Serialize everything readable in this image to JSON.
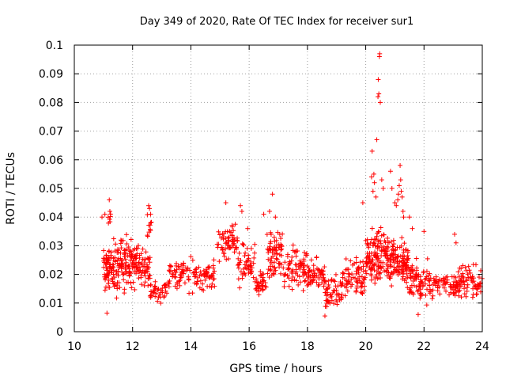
{
  "chart_data": {
    "type": "scatter",
    "title": "Day 349 of 2020, Rate Of TEC Index for receiver sur1",
    "xlabel": "GPS time / hours",
    "ylabel": "ROTI / TECUs",
    "xlim": [
      10,
      24
    ],
    "ylim": [
      0,
      0.1
    ],
    "xticks": [
      10,
      12,
      14,
      16,
      18,
      20,
      22,
      24
    ],
    "yticks": [
      0,
      0.01,
      0.02,
      0.03,
      0.04,
      0.05,
      0.06,
      0.07,
      0.08,
      0.09,
      0.1
    ],
    "xtick_labels": [
      "10",
      "12",
      "14",
      "16",
      "18",
      "20",
      "22",
      "24"
    ],
    "ytick_labels": [
      "0",
      "0.01",
      "0.02",
      "0.03",
      "0.04",
      "0.05",
      "0.06",
      "0.07",
      "0.08",
      "0.09",
      "0.1"
    ],
    "grid": true,
    "marker": "plus",
    "color": "#ff0000",
    "series": [
      {
        "values_described_by": "clusters",
        "clusters": [
          {
            "x_start": 11.0,
            "x_end": 11.5,
            "y_min": 0.01,
            "y_max": 0.035,
            "count": 90
          },
          {
            "x_start": 11.15,
            "x_end": 11.25,
            "y_min": 0.035,
            "y_max": 0.046,
            "count": 6
          },
          {
            "x_start": 11.5,
            "x_end": 12.2,
            "y_min": 0.012,
            "y_max": 0.035,
            "count": 110
          },
          {
            "x_start": 12.2,
            "x_end": 12.6,
            "y_min": 0.013,
            "y_max": 0.032,
            "count": 50
          },
          {
            "x_start": 12.5,
            "x_end": 12.65,
            "y_min": 0.03,
            "y_max": 0.044,
            "count": 10
          },
          {
            "x_start": 12.6,
            "x_end": 13.2,
            "y_min": 0.009,
            "y_max": 0.02,
            "count": 40
          },
          {
            "x_start": 13.2,
            "x_end": 14.0,
            "y_min": 0.012,
            "y_max": 0.028,
            "count": 60
          },
          {
            "x_start": 14.0,
            "x_end": 14.9,
            "y_min": 0.011,
            "y_max": 0.027,
            "count": 60
          },
          {
            "x_start": 14.9,
            "x_end": 15.6,
            "y_min": 0.022,
            "y_max": 0.04,
            "count": 60
          },
          {
            "x_start": 15.6,
            "x_end": 16.2,
            "y_min": 0.014,
            "y_max": 0.034,
            "count": 50
          },
          {
            "x_start": 16.2,
            "x_end": 16.6,
            "y_min": 0.011,
            "y_max": 0.022,
            "count": 35
          },
          {
            "x_start": 16.6,
            "x_end": 17.2,
            "y_min": 0.014,
            "y_max": 0.04,
            "count": 70
          },
          {
            "x_start": 17.2,
            "x_end": 18.0,
            "y_min": 0.011,
            "y_max": 0.033,
            "count": 80
          },
          {
            "x_start": 18.0,
            "x_end": 18.6,
            "y_min": 0.012,
            "y_max": 0.027,
            "count": 60
          },
          {
            "x_start": 18.6,
            "x_end": 19.2,
            "y_min": 0.006,
            "y_max": 0.022,
            "count": 55
          },
          {
            "x_start": 19.2,
            "x_end": 20.0,
            "y_min": 0.01,
            "y_max": 0.028,
            "count": 75
          },
          {
            "x_start": 20.0,
            "x_end": 21.0,
            "y_min": 0.012,
            "y_max": 0.04,
            "count": 180
          },
          {
            "x_start": 21.0,
            "x_end": 21.5,
            "y_min": 0.013,
            "y_max": 0.035,
            "count": 80
          },
          {
            "x_start": 21.5,
            "x_end": 22.2,
            "y_min": 0.008,
            "y_max": 0.028,
            "count": 80
          },
          {
            "x_start": 22.2,
            "x_end": 23.2,
            "y_min": 0.01,
            "y_max": 0.022,
            "count": 80
          },
          {
            "x_start": 23.2,
            "x_end": 24.0,
            "y_min": 0.01,
            "y_max": 0.025,
            "count": 70
          }
        ],
        "outliers": [
          {
            "x": 10.95,
            "y": 0.04
          },
          {
            "x": 11.05,
            "y": 0.041
          },
          {
            "x": 11.12,
            "y": 0.0065
          },
          {
            "x": 11.2,
            "y": 0.046
          },
          {
            "x": 11.22,
            "y": 0.042
          },
          {
            "x": 12.55,
            "y": 0.044
          },
          {
            "x": 12.58,
            "y": 0.043
          },
          {
            "x": 12.62,
            "y": 0.041
          },
          {
            "x": 15.2,
            "y": 0.045
          },
          {
            "x": 15.7,
            "y": 0.044
          },
          {
            "x": 15.75,
            "y": 0.042
          },
          {
            "x": 15.95,
            "y": 0.036
          },
          {
            "x": 16.8,
            "y": 0.048
          },
          {
            "x": 16.5,
            "y": 0.041
          },
          {
            "x": 16.7,
            "y": 0.042
          },
          {
            "x": 16.9,
            "y": 0.04
          },
          {
            "x": 17.05,
            "y": 0.034
          },
          {
            "x": 18.6,
            "y": 0.0055
          },
          {
            "x": 19.9,
            "y": 0.045
          },
          {
            "x": 20.2,
            "y": 0.054
          },
          {
            "x": 20.22,
            "y": 0.063
          },
          {
            "x": 20.25,
            "y": 0.049
          },
          {
            "x": 20.28,
            "y": 0.055
          },
          {
            "x": 20.3,
            "y": 0.052
          },
          {
            "x": 20.35,
            "y": 0.047
          },
          {
            "x": 20.38,
            "y": 0.067
          },
          {
            "x": 20.42,
            "y": 0.082
          },
          {
            "x": 20.45,
            "y": 0.083
          },
          {
            "x": 20.43,
            "y": 0.088
          },
          {
            "x": 20.47,
            "y": 0.096
          },
          {
            "x": 20.48,
            "y": 0.097
          },
          {
            "x": 20.5,
            "y": 0.08
          },
          {
            "x": 20.55,
            "y": 0.053
          },
          {
            "x": 20.6,
            "y": 0.05
          },
          {
            "x": 20.85,
            "y": 0.056
          },
          {
            "x": 20.9,
            "y": 0.05
          },
          {
            "x": 21.0,
            "y": 0.045
          },
          {
            "x": 21.05,
            "y": 0.044
          },
          {
            "x": 21.1,
            "y": 0.046
          },
          {
            "x": 21.12,
            "y": 0.048
          },
          {
            "x": 21.15,
            "y": 0.051
          },
          {
            "x": 21.18,
            "y": 0.058
          },
          {
            "x": 21.2,
            "y": 0.053
          },
          {
            "x": 21.22,
            "y": 0.049
          },
          {
            "x": 21.25,
            "y": 0.047
          },
          {
            "x": 21.28,
            "y": 0.042
          },
          {
            "x": 21.3,
            "y": 0.04
          },
          {
            "x": 21.5,
            "y": 0.04
          },
          {
            "x": 21.6,
            "y": 0.036
          },
          {
            "x": 21.8,
            "y": 0.006
          },
          {
            "x": 22.0,
            "y": 0.035
          },
          {
            "x": 23.05,
            "y": 0.034
          },
          {
            "x": 23.1,
            "y": 0.031
          }
        ]
      }
    ]
  }
}
